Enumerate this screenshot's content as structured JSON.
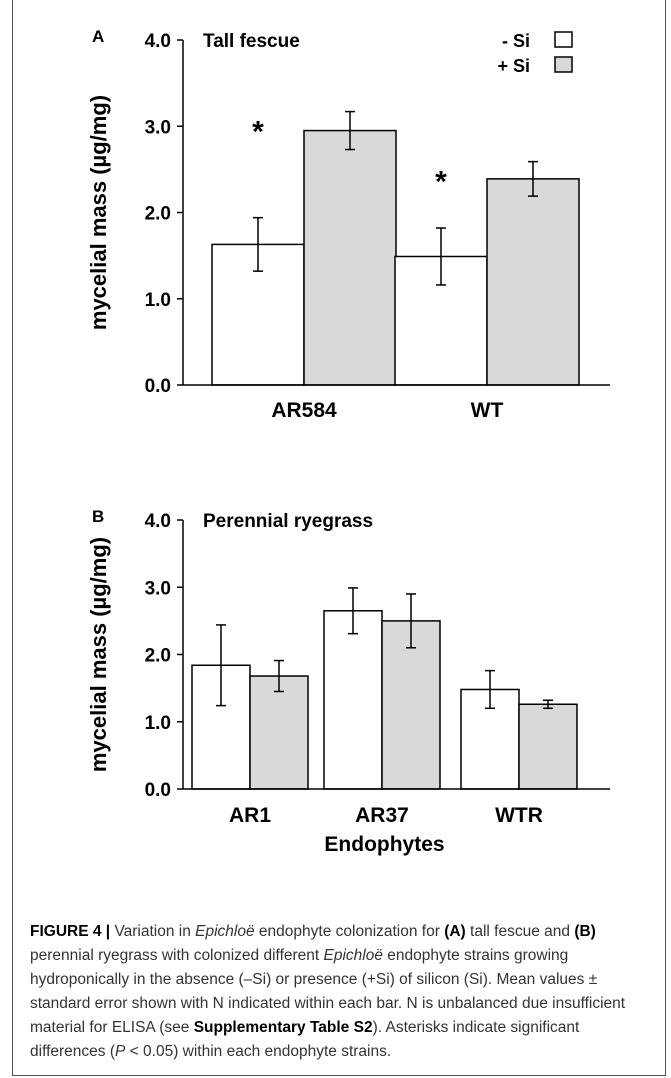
{
  "chart_data": [
    {
      "type": "bar",
      "panel_label": "A",
      "title": "Tall fescue",
      "ylabel": "mycelial mass (µg/mg)",
      "xlabel": "",
      "ylim": [
        0,
        4
      ],
      "yticks": [
        "0.0",
        "1.0",
        "2.0",
        "3.0",
        "4.0"
      ],
      "categories": [
        "AR584",
        "WT"
      ],
      "series": [
        {
          "name": "- Si",
          "color": "#ffffff",
          "values": [
            1.63,
            1.49
          ],
          "errors": [
            0.31,
            0.33
          ]
        },
        {
          "name": "+ Si",
          "color": "#d9d9d9",
          "values": [
            2.95,
            2.39
          ],
          "errors": [
            0.22,
            0.2
          ]
        }
      ],
      "annotations": [
        "*",
        "*"
      ],
      "legend_position": "top-right"
    },
    {
      "type": "bar",
      "panel_label": "B",
      "title": "Perennial ryegrass",
      "ylabel": "mycelial mass (µg/mg)",
      "xlabel": "Endophytes",
      "ylim": [
        0,
        4
      ],
      "yticks": [
        "0.0",
        "1.0",
        "2.0",
        "3.0",
        "4.0"
      ],
      "categories": [
        "AR1",
        "AR37",
        "WTR"
      ],
      "series": [
        {
          "name": "- Si",
          "color": "#ffffff",
          "values": [
            1.84,
            2.65,
            1.48
          ],
          "errors": [
            0.6,
            0.34,
            0.28
          ]
        },
        {
          "name": "+ Si",
          "color": "#d9d9d9",
          "values": [
            1.68,
            2.5,
            1.26
          ],
          "errors": [
            0.23,
            0.4,
            0.06
          ]
        }
      ]
    }
  ],
  "caption": {
    "figure_label": "FIGURE 4 |",
    "t1": " Variation in ",
    "genus": "Epichloë",
    "t2": " endophyte colonization for ",
    "a": "(A)",
    "t3": " tall fescue and ",
    "b": "(B)",
    "t4": " perennial ryegrass with colonized different ",
    "genus2": "Epichloë",
    "t5": " endophyte strains growing hydroponically in the absence (–Si) or presence (+Si) of silicon (Si). Mean values ± standard error shown with N indicated within each bar. N is unbalanced due insufficient material for ELISA (see ",
    "supp": "Supplementary Table S2",
    "t6": "). Asterisks indicate significant differences (",
    "p": "P",
    "t7": " < 0.05) within each endophyte strains."
  }
}
